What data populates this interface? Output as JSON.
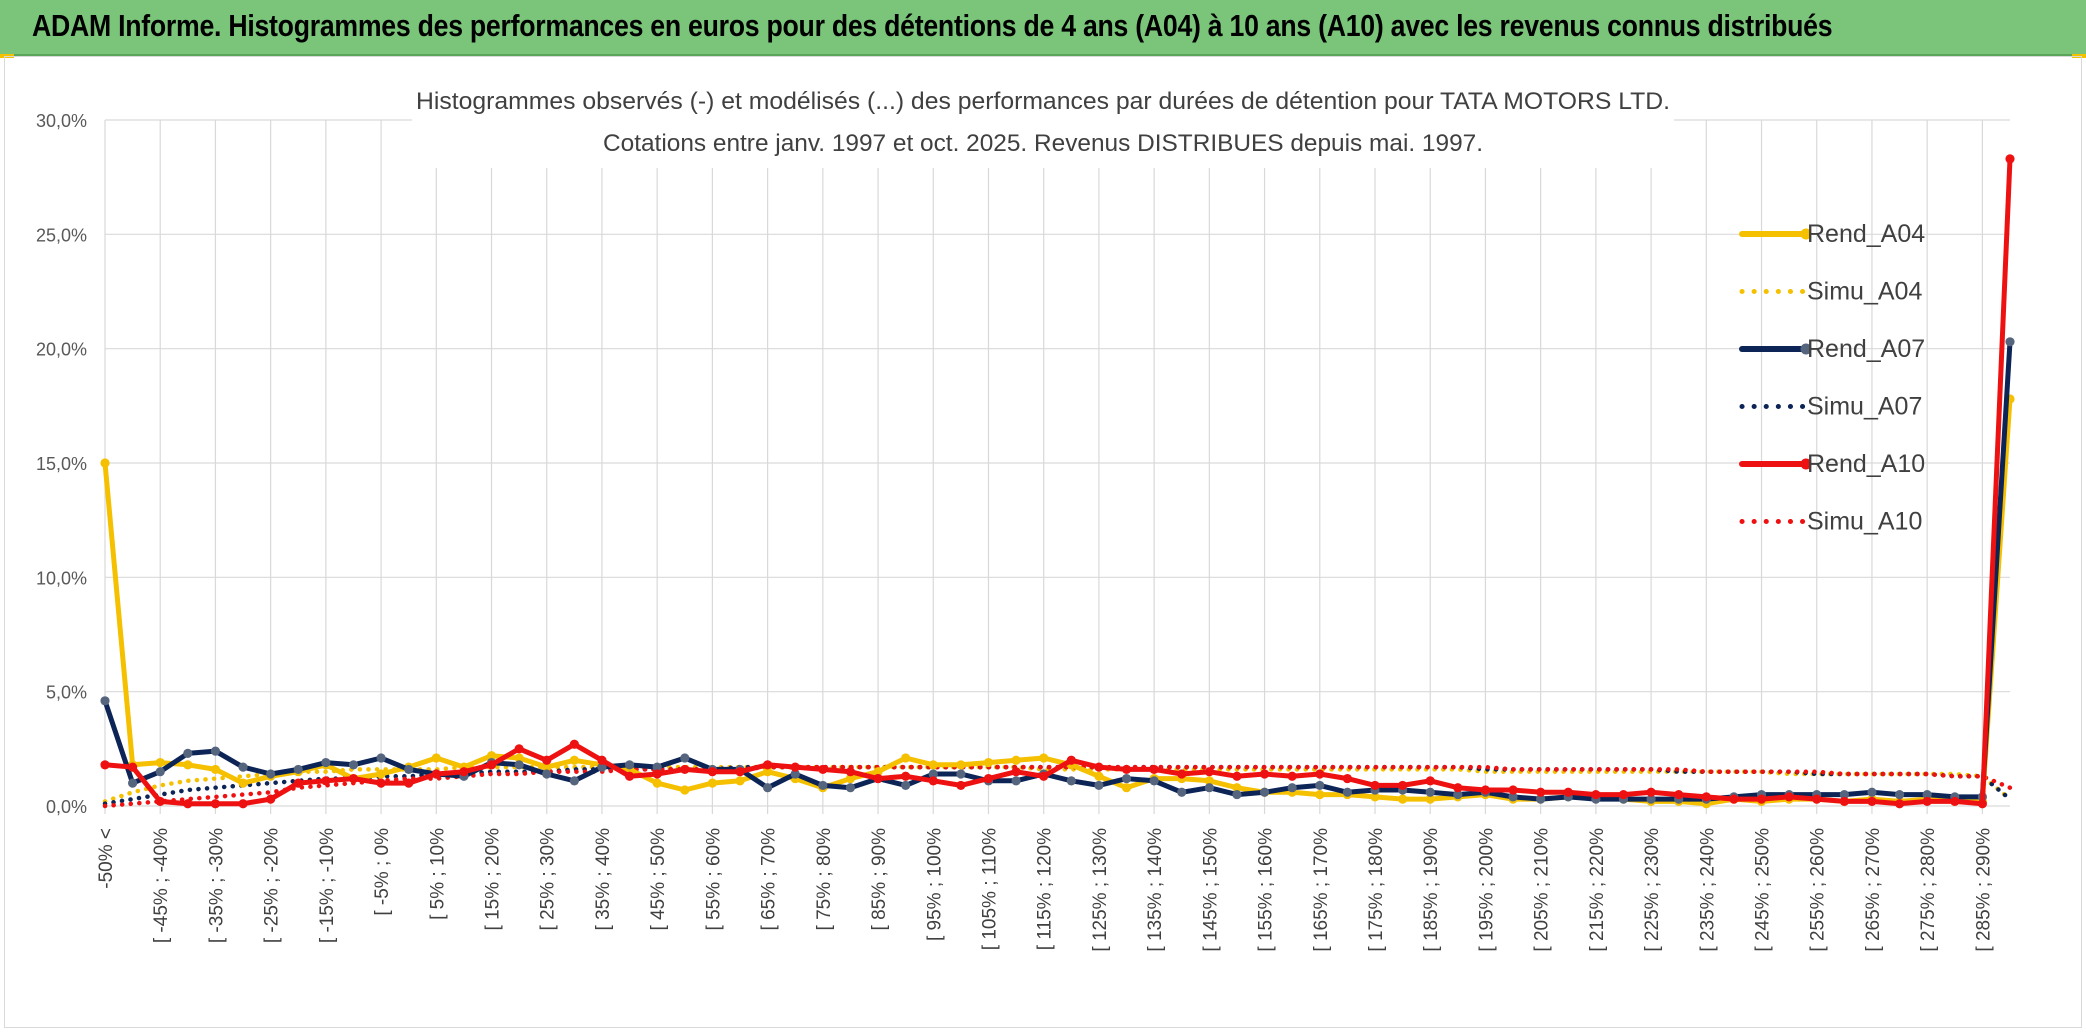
{
  "page": {
    "banner_title": "ADAM Informe. Histogrammes des performances en euros pour des détentions de 4 ans (A04) à 10 ans (A10) avec les revenus connus distribués"
  },
  "chart_data": {
    "type": "line",
    "title": "Histogrammes observés (-) et modélisés (...) des performances par durées de détention pour TATA MOTORS LTD.",
    "subtitle": "Cotations entre janv. 1997 et oct. 2025. Revenus DISTRIBUES depuis mai. 1997.",
    "ylim": [
      0,
      30
    ],
    "yticks": [
      "0,0%",
      "5,0%",
      "10,0%",
      "15,0%",
      "20,0%",
      "25,0%",
      "30,0%"
    ],
    "ytick_values": [
      0,
      5,
      10,
      15,
      20,
      25,
      30
    ],
    "tick_labels": [
      "-50% <",
      "[ -45% ; -40%",
      "[ -35% ; -30%",
      "[ -25% ; -20%",
      "[ -15% ; -10%",
      "[ -5% ; 0%",
      "[ 5% ; 10%",
      "[ 15% ; 20%",
      "[ 25% ; 30%",
      "[ 35% ; 40%",
      "[ 45% ; 50%",
      "[ 55% ; 60%",
      "[ 65% ; 70%",
      "[ 75% ; 80%",
      "[ 85% ; 90%",
      "[ 95% ; 100%",
      "[ 105% ; 110%",
      "[ 115% ; 120%",
      "[ 125% ; 130%",
      "[ 135% ; 140%",
      "[ 145% ; 150%",
      "[ 155% ; 160%",
      "[ 165% ; 170%",
      "[ 175% ; 180%",
      "[ 185% ; 190%",
      "[ 195% ; 200%",
      "[ 205% ; 210%",
      "[ 215% ; 220%",
      "[ 225% ; 230%",
      "[ 235% ; 240%",
      "[ 245% ; 250%",
      "[ 255% ; 260%",
      "[ 265% ; 270%",
      "[ 275% ; 280%",
      "[ 285% ; 290%"
    ],
    "n_points": 70,
    "legend_position": "right",
    "series": [
      {
        "name": "Rend_A04",
        "color": "#f5c000",
        "style": "solid",
        "markers": true,
        "values": [
          15.0,
          1.8,
          1.9,
          1.8,
          1.6,
          1.0,
          1.3,
          1.5,
          1.8,
          1.2,
          1.4,
          1.7,
          2.1,
          1.7,
          2.2,
          2.1,
          1.7,
          2.0,
          1.8,
          1.6,
          1.0,
          0.7,
          1.0,
          1.1,
          1.5,
          1.2,
          0.8,
          1.2,
          1.5,
          2.1,
          1.8,
          1.8,
          1.9,
          2.0,
          2.1,
          1.8,
          1.3,
          0.8,
          1.2,
          1.2,
          1.1,
          0.8,
          0.6,
          0.6,
          0.5,
          0.5,
          0.4,
          0.3,
          0.3,
          0.4,
          0.5,
          0.3,
          0.3,
          0.4,
          0.4,
          0.3,
          0.2,
          0.2,
          0.1,
          0.3,
          0.2,
          0.3,
          0.3,
          0.2,
          0.3,
          0.2,
          0.3,
          0.2,
          0.2,
          17.8
        ]
      },
      {
        "name": "Simu_A04",
        "color": "#f5c000",
        "style": "dotted",
        "markers": false,
        "values": [
          0.2,
          0.6,
          0.9,
          1.1,
          1.2,
          1.3,
          1.4,
          1.5,
          1.5,
          1.6,
          1.6,
          1.6,
          1.6,
          1.7,
          1.7,
          1.7,
          1.7,
          1.7,
          1.7,
          1.7,
          1.7,
          1.7,
          1.7,
          1.7,
          1.7,
          1.7,
          1.7,
          1.7,
          1.7,
          1.7,
          1.7,
          1.7,
          1.7,
          1.7,
          1.6,
          1.6,
          1.6,
          1.6,
          1.6,
          1.6,
          1.6,
          1.6,
          1.6,
          1.6,
          1.6,
          1.6,
          1.6,
          1.6,
          1.6,
          1.6,
          1.5,
          1.5,
          1.5,
          1.5,
          1.5,
          1.5,
          1.5,
          1.5,
          1.5,
          1.5,
          1.5,
          1.4,
          1.4,
          1.4,
          1.4,
          1.4,
          1.4,
          1.4,
          1.3,
          0.3
        ]
      },
      {
        "name": "Rend_A07",
        "color": "#0d2456",
        "style": "solid",
        "markers": true,
        "values": [
          4.6,
          1.0,
          1.5,
          2.3,
          2.4,
          1.7,
          1.4,
          1.6,
          1.9,
          1.8,
          2.1,
          1.6,
          1.4,
          1.3,
          1.9,
          1.8,
          1.4,
          1.1,
          1.7,
          1.8,
          1.7,
          2.1,
          1.6,
          1.6,
          0.8,
          1.4,
          0.9,
          0.8,
          1.2,
          0.9,
          1.4,
          1.4,
          1.1,
          1.1,
          1.4,
          1.1,
          0.9,
          1.2,
          1.1,
          0.6,
          0.8,
          0.5,
          0.6,
          0.8,
          0.9,
          0.6,
          0.7,
          0.7,
          0.6,
          0.5,
          0.6,
          0.4,
          0.3,
          0.4,
          0.3,
          0.3,
          0.3,
          0.3,
          0.3,
          0.4,
          0.5,
          0.5,
          0.5,
          0.5,
          0.6,
          0.5,
          0.5,
          0.4,
          0.4,
          20.3
        ]
      },
      {
        "name": "Simu_A07",
        "color": "#0d2456",
        "style": "dotted",
        "markers": false,
        "values": [
          0.1,
          0.3,
          0.5,
          0.7,
          0.8,
          0.9,
          1.0,
          1.1,
          1.2,
          1.2,
          1.3,
          1.3,
          1.4,
          1.4,
          1.5,
          1.5,
          1.5,
          1.6,
          1.6,
          1.6,
          1.6,
          1.6,
          1.6,
          1.7,
          1.7,
          1.7,
          1.7,
          1.7,
          1.7,
          1.7,
          1.7,
          1.7,
          1.7,
          1.7,
          1.7,
          1.7,
          1.7,
          1.7,
          1.7,
          1.7,
          1.7,
          1.7,
          1.7,
          1.7,
          1.7,
          1.7,
          1.7,
          1.7,
          1.7,
          1.7,
          1.6,
          1.6,
          1.6,
          1.6,
          1.6,
          1.6,
          1.6,
          1.5,
          1.5,
          1.5,
          1.5,
          1.5,
          1.4,
          1.4,
          1.4,
          1.4,
          1.4,
          1.3,
          1.3,
          0.3
        ]
      },
      {
        "name": "Rend_A10",
        "color": "#ee1111",
        "style": "solid",
        "markers": true,
        "values": [
          1.8,
          1.7,
          0.2,
          0.1,
          0.1,
          0.1,
          0.3,
          1.0,
          1.1,
          1.2,
          1.0,
          1.0,
          1.4,
          1.5,
          1.8,
          2.5,
          2.0,
          2.7,
          2.0,
          1.3,
          1.4,
          1.6,
          1.5,
          1.5,
          1.8,
          1.7,
          1.6,
          1.5,
          1.2,
          1.3,
          1.1,
          0.9,
          1.2,
          1.5,
          1.3,
          2.0,
          1.7,
          1.6,
          1.6,
          1.4,
          1.5,
          1.3,
          1.4,
          1.3,
          1.4,
          1.2,
          0.9,
          0.9,
          1.1,
          0.8,
          0.7,
          0.7,
          0.6,
          0.6,
          0.5,
          0.5,
          0.6,
          0.5,
          0.4,
          0.3,
          0.3,
          0.4,
          0.3,
          0.2,
          0.2,
          0.1,
          0.2,
          0.2,
          0.1,
          28.3
        ]
      },
      {
        "name": "Simu_A10",
        "color": "#ee1111",
        "style": "dotted",
        "markers": false,
        "values": [
          0.0,
          0.1,
          0.2,
          0.3,
          0.4,
          0.5,
          0.6,
          0.8,
          0.9,
          1.0,
          1.1,
          1.2,
          1.2,
          1.3,
          1.4,
          1.4,
          1.5,
          1.5,
          1.5,
          1.6,
          1.6,
          1.6,
          1.6,
          1.6,
          1.7,
          1.7,
          1.7,
          1.7,
          1.7,
          1.7,
          1.7,
          1.7,
          1.7,
          1.7,
          1.7,
          1.7,
          1.7,
          1.7,
          1.7,
          1.7,
          1.7,
          1.7,
          1.7,
          1.7,
          1.7,
          1.7,
          1.7,
          1.7,
          1.7,
          1.7,
          1.7,
          1.6,
          1.6,
          1.6,
          1.6,
          1.6,
          1.6,
          1.6,
          1.5,
          1.5,
          1.5,
          1.5,
          1.5,
          1.4,
          1.4,
          1.4,
          1.4,
          1.3,
          1.3,
          0.8
        ]
      }
    ]
  }
}
